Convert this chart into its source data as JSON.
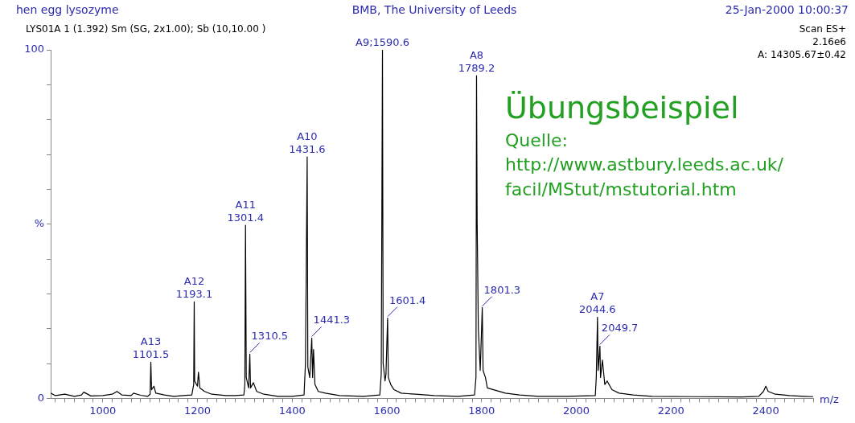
{
  "chart_data": {
    "type": "line",
    "title": "hen egg lysozyme",
    "subtitle": "LYS01A 1 (1.392) Sm (SG, 2x1.00); Sb (10,10.00 )",
    "xlabel": "m/z",
    "series": [
      {
        "color": "#000000",
        "x": [
          890,
          900,
          920,
          940,
          955,
          960,
          975,
          1000,
          1020,
          1030,
          1040,
          1060,
          1065,
          1080,
          1095,
          1100,
          1101.5,
          1103,
          1108,
          1112,
          1130,
          1150,
          1170,
          1188,
          1192,
          1193.1,
          1194,
          1200,
          1202,
          1205,
          1215,
          1230,
          1260,
          1280,
          1298,
          1300,
          1301.4,
          1303,
          1308,
          1310.5,
          1312,
          1318,
          1325,
          1340,
          1370,
          1400,
          1425,
          1428,
          1431.6,
          1433,
          1437,
          1441.3,
          1443,
          1445,
          1448,
          1455,
          1470,
          1500,
          1550,
          1585,
          1588,
          1590.6,
          1592,
          1596,
          1598,
          1601.4,
          1603,
          1608,
          1615,
          1630,
          1660,
          1700,
          1750,
          1785,
          1788,
          1789.2,
          1790.5,
          1793,
          1797,
          1801.3,
          1803,
          1808,
          1812,
          1825,
          1850,
          1880,
          1920,
          1980,
          2040,
          2042,
          2044.6,
          2046,
          2049.7,
          2051,
          2055,
          2060,
          2065,
          2075,
          2090,
          2120,
          2160,
          2250,
          2350,
          2385,
          2395,
          2400,
          2405,
          2420,
          2450,
          2480,
          2500
        ],
        "values": [
          1.5,
          0.8,
          1.2,
          0.6,
          1.0,
          1.8,
          0.7,
          0.8,
          1.2,
          2.0,
          1.0,
          0.8,
          1.5,
          0.9,
          0.6,
          1.2,
          10.4,
          2.5,
          3.5,
          1.5,
          1.0,
          0.6,
          0.8,
          1.0,
          4,
          27.7,
          5,
          3.5,
          7.5,
          3,
          2,
          1.2,
          0.8,
          0.8,
          1.0,
          4,
          49.7,
          6,
          3,
          12.7,
          3,
          4.5,
          2,
          1.2,
          0.6,
          0.6,
          1.0,
          10,
          69.3,
          9,
          6,
          17.3,
          6,
          14,
          4,
          2,
          1.5,
          0.8,
          0.6,
          1.0,
          7,
          100,
          10,
          5,
          7,
          23,
          6,
          4,
          2.5,
          1.5,
          1.2,
          0.8,
          0.6,
          1.0,
          6,
          92.6,
          50.8,
          20,
          8,
          26,
          8,
          6,
          3,
          2.5,
          1.5,
          1.0,
          0.6,
          0.6,
          0.8,
          6,
          23.3,
          8,
          15,
          6,
          11,
          4,
          5,
          2.5,
          1.5,
          1.0,
          0.6,
          0.5,
          0.4,
          0.6,
          2,
          3.5,
          2,
          1.2,
          0.8,
          0.6,
          0.5
        ]
      }
    ],
    "xlim": [
      890,
      2500
    ],
    "xticks": [
      {
        "value": 900,
        "label": null
      },
      {
        "value": 920,
        "label": null
      },
      {
        "value": 940,
        "label": null
      },
      {
        "value": 960,
        "label": null
      },
      {
        "value": 980,
        "label": null
      },
      1000,
      {
        "value": 1020,
        "label": null
      },
      {
        "value": 1040,
        "label": null
      },
      {
        "value": 1060,
        "label": null
      },
      {
        "value": 1080,
        "label": null
      },
      {
        "value": 1100,
        "label": null
      },
      {
        "value": 1120,
        "label": null
      },
      {
        "value": 1140,
        "label": null
      },
      {
        "value": 1160,
        "label": null
      },
      {
        "value": 1180,
        "label": null
      },
      1200,
      {
        "value": 1220,
        "label": null
      },
      {
        "value": 1240,
        "label": null
      },
      {
        "value": 1260,
        "label": null
      },
      {
        "value": 1280,
        "label": null
      },
      {
        "value": 1300,
        "label": null
      },
      {
        "value": 1320,
        "label": null
      },
      {
        "value": 1340,
        "label": null
      },
      {
        "value": 1360,
        "label": null
      },
      {
        "value": 1380,
        "label": null
      },
      1400,
      {
        "value": 1420,
        "label": null
      },
      {
        "value": 1440,
        "label": null
      },
      {
        "value": 1460,
        "label": null
      },
      {
        "value": 1480,
        "label": null
      },
      {
        "value": 1500,
        "label": null
      },
      {
        "value": 1520,
        "label": null
      },
      {
        "value": 1540,
        "label": null
      },
      {
        "value": 1560,
        "label": null
      },
      {
        "value": 1580,
        "label": null
      },
      1600,
      {
        "value": 1620,
        "label": null
      },
      {
        "value": 1640,
        "label": null
      },
      {
        "value": 1660,
        "label": null
      },
      {
        "value": 1680,
        "label": null
      },
      {
        "value": 1700,
        "label": null
      },
      {
        "value": 1720,
        "label": null
      },
      {
        "value": 1740,
        "label": null
      },
      {
        "value": 1760,
        "label": null
      },
      {
        "value": 1780,
        "label": null
      },
      1800,
      {
        "value": 1820,
        "label": null
      },
      {
        "value": 1840,
        "label": null
      },
      {
        "value": 1860,
        "label": null
      },
      {
        "value": 1880,
        "label": null
      },
      {
        "value": 1900,
        "label": null
      },
      {
        "value": 1920,
        "label": null
      },
      {
        "value": 1940,
        "label": null
      },
      {
        "value": 1960,
        "label": null
      },
      {
        "value": 1980,
        "label": null
      },
      2000,
      {
        "value": 2020,
        "label": null
      },
      {
        "value": 2040,
        "label": null
      },
      {
        "value": 2060,
        "label": null
      },
      {
        "value": 2080,
        "label": null
      },
      {
        "value": 2100,
        "label": null
      },
      {
        "value": 2120,
        "label": null
      },
      {
        "value": 2140,
        "label": null
      },
      {
        "value": 2160,
        "label": null
      },
      {
        "value": 2180,
        "label": null
      },
      2200,
      {
        "value": 2220,
        "label": null
      },
      {
        "value": 2240,
        "label": null
      },
      {
        "value": 2260,
        "label": null
      },
      {
        "value": 2280,
        "label": null
      },
      {
        "value": 2300,
        "label": null
      },
      {
        "value": 2320,
        "label": null
      },
      {
        "value": 2340,
        "label": null
      },
      {
        "value": 2360,
        "label": null
      },
      {
        "value": 2380,
        "label": null
      },
      2400,
      {
        "value": 2420,
        "label": null
      },
      {
        "value": 2440,
        "label": null
      },
      {
        "value": 2460,
        "label": null
      },
      {
        "value": 2480,
        "label": null
      },
      {
        "value": 2500,
        "label": null
      }
    ],
    "ylim": [
      0,
      100
    ],
    "yticks": [
      0,
      {
        "value": 10,
        "label": null
      },
      {
        "value": 20,
        "label": null
      },
      {
        "value": 30,
        "label": null
      },
      {
        "value": 40,
        "label": null
      },
      {
        "value": 50,
        "label": "%"
      },
      {
        "value": 60,
        "label": null
      },
      {
        "value": 70,
        "label": null
      },
      {
        "value": 80,
        "label": null
      },
      {
        "value": 90,
        "label": null
      },
      100
    ],
    "grid": false,
    "legend": false,
    "annotations": [
      "BMB, The University of Leeds",
      "25-Jan-2000 10:00:37",
      "Scan ES+",
      "2.16e6",
      "A: 14305.67±0.42",
      "Übungsbeispiel",
      "Quelle:",
      "http://www.astbury.leeds.ac.uk/",
      "facil/MStut/mstutorial.htm",
      {
        "text": "A13\n1101.5",
        "x": 1101.5,
        "y": 10.4
      },
      {
        "text": "A12\n1193.1",
        "x": 1193.1,
        "y": 27.7
      },
      {
        "text": "A11\n1301.4",
        "x": 1301.4,
        "y": 49.7
      },
      {
        "text": "1310.5",
        "x": 1310.5,
        "y": 12.7
      },
      {
        "text": "A10\n1431.6",
        "x": 1431.6,
        "y": 69.3
      },
      {
        "text": "1441.3",
        "x": 1441.3,
        "y": 17.3
      },
      {
        "text": "A9;1590.6",
        "x": 1590.6,
        "y": 100
      },
      {
        "text": "1601.4",
        "x": 1601.4,
        "y": 23
      },
      {
        "text": "A8\n1789.2",
        "x": 1789.2,
        "y": 92.6
      },
      {
        "text": "1801.3",
        "x": 1801.3,
        "y": 26
      },
      {
        "text": "A7\n2044.6",
        "x": 2044.6,
        "y": 23.3
      },
      {
        "text": "2049.7",
        "x": 2049.7,
        "y": 15
      }
    ]
  }
}
